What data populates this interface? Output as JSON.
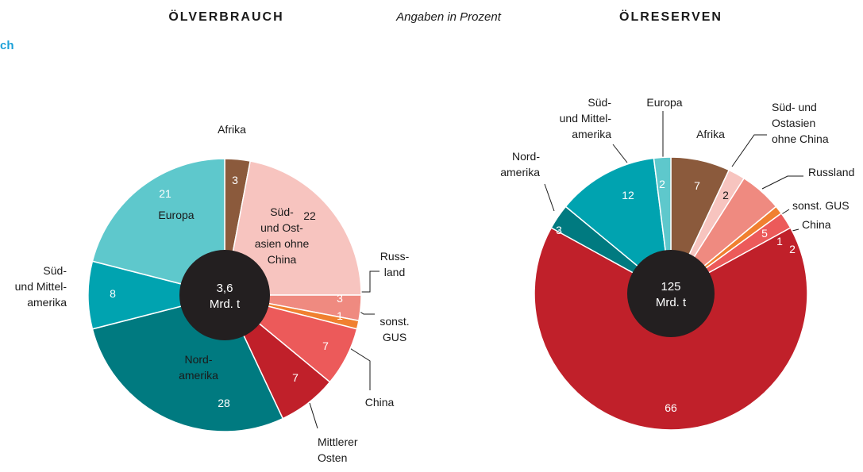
{
  "subtitle": "Angaben in Prozent",
  "edge_text": "ch",
  "chart_data": [
    {
      "type": "pie",
      "title": "ÖLVERBRAUCH",
      "center_label": [
        "3,6",
        "Mrd. t"
      ],
      "categories": [
        [
          "Afrika"
        ],
        [
          "Süd-",
          "und Ost-",
          "asien ohne",
          "China"
        ],
        [
          "Russ-",
          "land"
        ],
        [
          "sonst.",
          "GUS"
        ],
        [
          "China"
        ],
        [
          "Mittlerer",
          "Osten"
        ],
        [
          "Nord-",
          "amerika"
        ],
        [
          "Süd-",
          "und Mittel-",
          "amerika"
        ],
        [
          "Europa"
        ]
      ],
      "values": [
        3,
        22,
        3,
        1,
        7,
        7,
        28,
        8,
        21
      ],
      "colors": [
        "#8b5a3c",
        "#f7c4bf",
        "#ef8a80",
        "#f08030",
        "#ec5a5a",
        "#c0202a",
        "#007a80",
        "#00a3b0",
        "#5ec8cc"
      ]
    },
    {
      "type": "pie",
      "title": "ÖLRESERVEN",
      "center_label": [
        "125",
        "Mrd. t"
      ],
      "categories": [
        [
          "Afrika"
        ],
        [
          "Süd- und",
          "Ostasien",
          "ohne China"
        ],
        [
          "Russland"
        ],
        [
          "sonst. GUS"
        ],
        [
          "China"
        ],
        null,
        [
          "Nord-",
          "amerika"
        ],
        [
          "Süd-",
          "und Mittel-",
          "amerika"
        ],
        [
          "Europa"
        ]
      ],
      "values": [
        7,
        2,
        5,
        1,
        2,
        66,
        3,
        12,
        2
      ],
      "colors": [
        "#8b5a3c",
        "#f7c4bf",
        "#ef8a80",
        "#f08030",
        "#ec5a5a",
        "#c0202a",
        "#007a80",
        "#00a3b0",
        "#5ec8cc"
      ]
    }
  ]
}
